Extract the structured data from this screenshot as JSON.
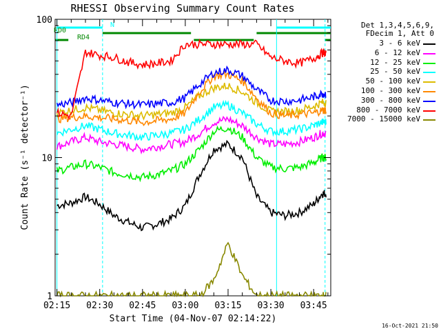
{
  "chart_data": {
    "type": "line",
    "title": "RHESSI Observing Summary Count Rates",
    "xlabel": "Start Time (04-Nov-07 02:14:22)",
    "ylabel": "Count Rate (s⁻¹ detector⁻¹)",
    "y_scale": "log",
    "ylim": [
      1,
      100
    ],
    "xlim": [
      "02:14:22",
      "03:51:00"
    ],
    "x_tick_labels": [
      "02:15",
      "02:30",
      "02:45",
      "03:00",
      "03:15",
      "03:30",
      "03:45"
    ],
    "y_tick_labels": [
      "1",
      "10",
      "100"
    ],
    "grid": false,
    "legend_position": "right",
    "legend_header": [
      "Det 1,3,4,5,6,9,",
      "FDecim 1, Att 0"
    ],
    "x": [
      "02:15",
      "02:20",
      "02:25",
      "02:30",
      "02:35",
      "02:40",
      "02:45",
      "02:50",
      "02:55",
      "03:00",
      "03:05",
      "03:10",
      "03:15",
      "03:20",
      "03:25",
      "03:30",
      "03:35",
      "03:40",
      "03:45",
      "03:48"
    ],
    "series": [
      {
        "name": "3 - 6 keV",
        "color": "#000000",
        "values": [
          4.5,
          4.7,
          5.2,
          4.6,
          3.8,
          3.4,
          3.1,
          3.3,
          3.6,
          4.5,
          7.5,
          11.5,
          12.5,
          10,
          5.2,
          4.0,
          3.8,
          4.0,
          4.6,
          5.5
        ]
      },
      {
        "name": "6 - 12 keV",
        "color": "#ff00ff",
        "values": [
          12,
          13,
          14,
          13,
          12.5,
          12,
          11.5,
          12,
          12.5,
          13,
          15,
          18,
          19,
          17,
          14,
          12.5,
          12.5,
          13,
          14,
          15
        ]
      },
      {
        "name": "12 - 25 keV",
        "color": "#00ee00",
        "values": [
          8,
          8.5,
          9,
          8.5,
          7.8,
          7.5,
          7.2,
          7.5,
          8,
          9,
          11.5,
          15.5,
          16.5,
          14,
          10,
          8.5,
          8.3,
          8.5,
          9.2,
          10
        ]
      },
      {
        "name": "25 - 50 keV",
        "color": "#00ffff",
        "values": [
          15,
          16,
          17,
          16,
          15,
          14.5,
          14,
          14.5,
          15,
          16,
          19,
          23,
          24,
          21,
          17.5,
          15.5,
          15.5,
          16,
          17,
          18
        ]
      },
      {
        "name": "50 - 100 keV",
        "color": "#ddbb00",
        "values": [
          21,
          22,
          23,
          22,
          21,
          20.5,
          20,
          20.5,
          21,
          23,
          28,
          32,
          33,
          30,
          25,
          21.5,
          21.5,
          22,
          23.5,
          25
        ]
      },
      {
        "name": "100 - 300 keV",
        "color": "#ff8800",
        "values": [
          19,
          19.5,
          20,
          19.5,
          19,
          18.5,
          18,
          18.5,
          19,
          21,
          30,
          39,
          40,
          36,
          27,
          21,
          20,
          20.5,
          21,
          22
        ]
      },
      {
        "name": "300 - 800 keV",
        "color": "#0000ff",
        "values": [
          24,
          25,
          27,
          26,
          25,
          24.5,
          24,
          24.5,
          25,
          27,
          34,
          41,
          43,
          39,
          31,
          26,
          25.5,
          26,
          27.5,
          29
        ]
      },
      {
        "name": "800 - 7000 keV",
        "color": "#ff0000",
        "values": [
          21,
          20,
          58,
          55,
          53,
          49,
          47,
          48,
          50,
          66,
          66,
          66,
          66,
          66,
          66,
          53,
          50,
          48,
          52,
          57
        ]
      },
      {
        "name": "7000 - 15000 keV",
        "color": "#888800",
        "values": [
          1,
          1,
          1,
          1,
          1,
          1,
          1,
          1,
          1,
          1,
          1,
          1.3,
          2.4,
          1.4,
          1,
          1,
          1,
          1,
          1,
          1
        ]
      }
    ],
    "flags": [
      {
        "name": "N",
        "color": "#00ffff",
        "segments": [
          [
            "02:15",
            "02:31"
          ],
          [
            "03:32",
            "03:51"
          ]
        ]
      },
      {
        "name": "RD0",
        "color": "#008800",
        "segments": [
          [
            "02:31",
            "03:02"
          ],
          [
            "03:25",
            "03:51"
          ]
        ]
      },
      {
        "name": "RD4",
        "color": "#008800",
        "segments": [
          [
            "02:14:22",
            "02:19"
          ],
          [
            "03:03",
            "03:24"
          ],
          [
            "03:49",
            "03:51"
          ]
        ]
      }
    ]
  },
  "footer": {
    "timestamp": "16-Oct-2021 21:50"
  }
}
